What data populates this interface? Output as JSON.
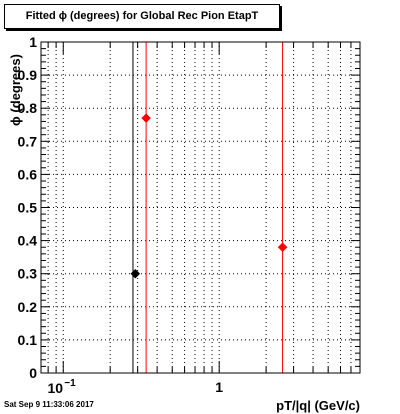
{
  "chart_data": {
    "type": "scatter",
    "title": "Fitted ϕ (degrees) for Global Rec Pion EtapT",
    "xlabel": "pT/|q| (GeV/c)",
    "ylabel": "ϕ (degrees)",
    "xscale": "log",
    "xlim": [
      0.072,
      8.0
    ],
    "ylim": [
      0,
      1
    ],
    "grid": true,
    "x_tick_labels": [
      {
        "value": 0.1,
        "base": "10",
        "exponent": "−1"
      },
      {
        "value": 1,
        "label": "1"
      }
    ],
    "y_tick_labels": [
      "0",
      "0.1",
      "0.2",
      "0.3",
      "0.4",
      "0.5",
      "0.6",
      "0.7",
      "0.8",
      "0.9",
      "1"
    ],
    "series": [
      {
        "color": "#000000",
        "points": [
          {
            "x": 0.29,
            "y": 0.3
          }
        ]
      },
      {
        "color": "#ff0000",
        "points": [
          {
            "x": 0.34,
            "y": 0.77
          },
          {
            "x": 2.55,
            "y": 0.38
          }
        ]
      }
    ],
    "vertical_lines": [
      {
        "x": 0.28,
        "color": "#000000"
      },
      {
        "x": 0.34,
        "color": "#ff0000"
      },
      {
        "x": 2.55,
        "color": "#ff0000"
      }
    ]
  },
  "footer": {
    "timestamp": "Sat Sep  9 11:33:06 2017"
  }
}
